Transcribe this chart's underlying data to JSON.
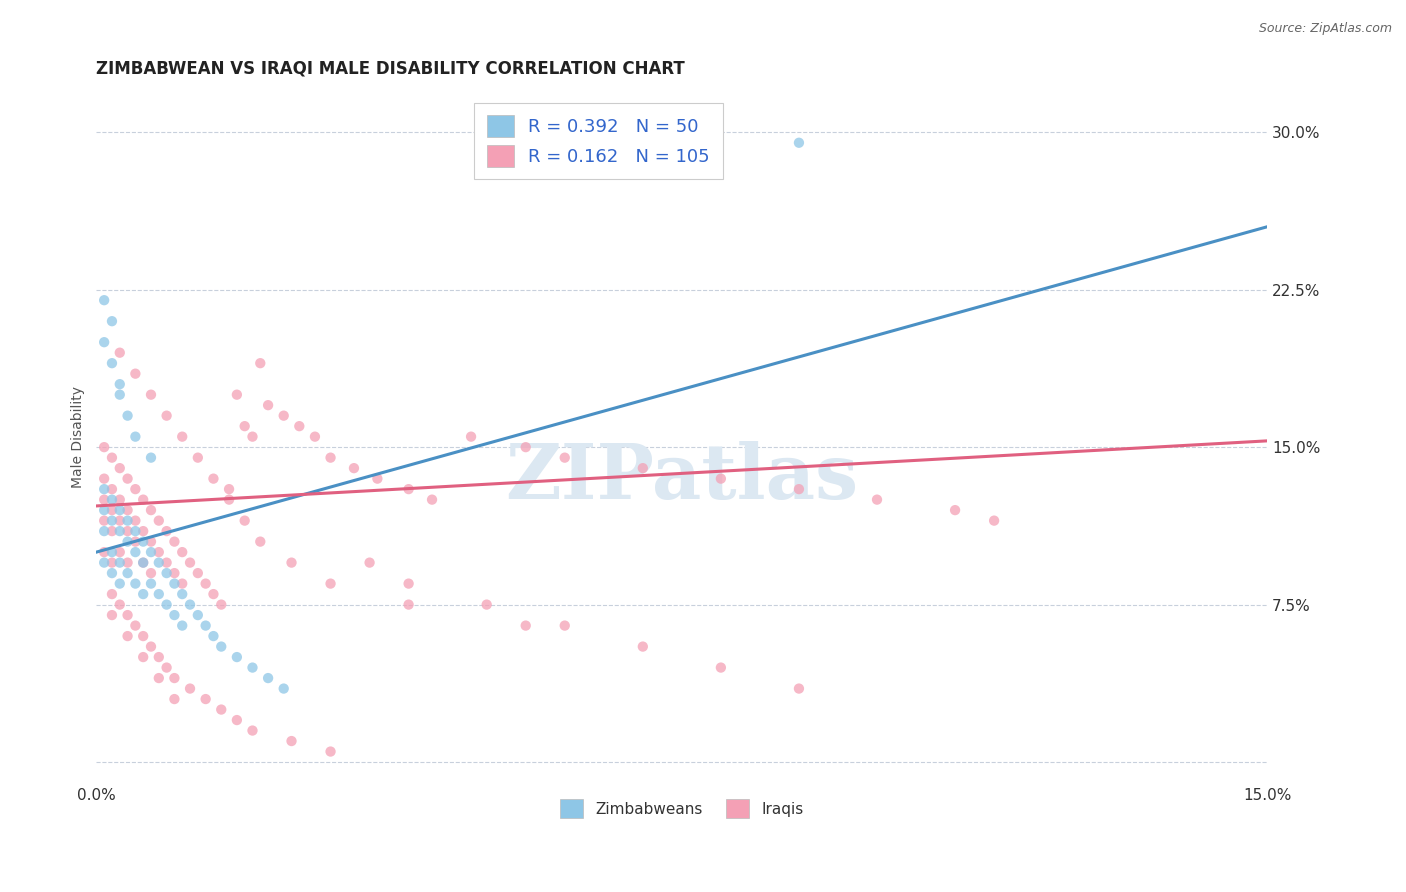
{
  "title": "ZIMBABWEAN VS IRAQI MALE DISABILITY CORRELATION CHART",
  "source": "Source: ZipAtlas.com",
  "ylabel_label": "Male Disability",
  "right_yticks": [
    0.0,
    0.075,
    0.15,
    0.225,
    0.3
  ],
  "right_ytick_labels": [
    "",
    "7.5%",
    "15.0%",
    "22.5%",
    "30.0%"
  ],
  "xlim": [
    0.0,
    0.15
  ],
  "ylim": [
    -0.01,
    0.32
  ],
  "R_zim": 0.392,
  "N_zim": 50,
  "R_iraq": 0.162,
  "N_iraq": 105,
  "color_zim": "#8ec6e6",
  "color_iraq": "#f4a0b5",
  "line_color_zim": "#4a90c4",
  "line_color_iraq": "#e06080",
  "legend_text_color": "#3366cc",
  "background_color": "#ffffff",
  "grid_color": "#c8d0dc",
  "watermark_text": "ZIPatlas",
  "watermark_color": "#dce8f2",
  "title_fontsize": 12,
  "axis_label_fontsize": 10,
  "legend_fontsize": 13,
  "zim_line_x0": 0.0,
  "zim_line_y0": 0.1,
  "zim_line_x1": 0.15,
  "zim_line_y1": 0.255,
  "iraq_line_x0": 0.0,
  "iraq_line_y0": 0.122,
  "iraq_line_x1": 0.15,
  "iraq_line_y1": 0.153,
  "zim_scatter_x": [
    0.001,
    0.001,
    0.001,
    0.001,
    0.002,
    0.002,
    0.002,
    0.002,
    0.003,
    0.003,
    0.003,
    0.003,
    0.004,
    0.004,
    0.004,
    0.005,
    0.005,
    0.005,
    0.006,
    0.006,
    0.006,
    0.007,
    0.007,
    0.008,
    0.008,
    0.009,
    0.009,
    0.01,
    0.01,
    0.011,
    0.011,
    0.012,
    0.013,
    0.014,
    0.015,
    0.016,
    0.018,
    0.02,
    0.022,
    0.024,
    0.001,
    0.001,
    0.002,
    0.002,
    0.003,
    0.003,
    0.004,
    0.005,
    0.007,
    0.09
  ],
  "zim_scatter_y": [
    0.13,
    0.12,
    0.11,
    0.095,
    0.125,
    0.115,
    0.1,
    0.09,
    0.12,
    0.11,
    0.095,
    0.085,
    0.115,
    0.105,
    0.09,
    0.11,
    0.1,
    0.085,
    0.105,
    0.095,
    0.08,
    0.1,
    0.085,
    0.095,
    0.08,
    0.09,
    0.075,
    0.085,
    0.07,
    0.08,
    0.065,
    0.075,
    0.07,
    0.065,
    0.06,
    0.055,
    0.05,
    0.045,
    0.04,
    0.035,
    0.2,
    0.22,
    0.19,
    0.21,
    0.18,
    0.175,
    0.165,
    0.155,
    0.145,
    0.295
  ],
  "iraq_scatter_x": [
    0.001,
    0.001,
    0.001,
    0.001,
    0.001,
    0.002,
    0.002,
    0.002,
    0.002,
    0.002,
    0.003,
    0.003,
    0.003,
    0.003,
    0.004,
    0.004,
    0.004,
    0.004,
    0.005,
    0.005,
    0.005,
    0.006,
    0.006,
    0.006,
    0.007,
    0.007,
    0.007,
    0.008,
    0.008,
    0.009,
    0.009,
    0.01,
    0.01,
    0.011,
    0.011,
    0.012,
    0.013,
    0.014,
    0.015,
    0.016,
    0.017,
    0.018,
    0.019,
    0.02,
    0.021,
    0.022,
    0.024,
    0.026,
    0.028,
    0.03,
    0.033,
    0.036,
    0.04,
    0.043,
    0.048,
    0.055,
    0.06,
    0.07,
    0.08,
    0.09,
    0.1,
    0.11,
    0.115,
    0.002,
    0.003,
    0.004,
    0.005,
    0.006,
    0.007,
    0.008,
    0.009,
    0.01,
    0.012,
    0.014,
    0.016,
    0.018,
    0.02,
    0.025,
    0.03,
    0.035,
    0.04,
    0.05,
    0.06,
    0.07,
    0.08,
    0.09,
    0.003,
    0.005,
    0.007,
    0.009,
    0.011,
    0.013,
    0.015,
    0.017,
    0.019,
    0.021,
    0.025,
    0.03,
    0.04,
    0.055,
    0.002,
    0.004,
    0.006,
    0.008,
    0.01
  ],
  "iraq_scatter_y": [
    0.15,
    0.135,
    0.125,
    0.115,
    0.1,
    0.145,
    0.13,
    0.12,
    0.11,
    0.095,
    0.14,
    0.125,
    0.115,
    0.1,
    0.135,
    0.12,
    0.11,
    0.095,
    0.13,
    0.115,
    0.105,
    0.125,
    0.11,
    0.095,
    0.12,
    0.105,
    0.09,
    0.115,
    0.1,
    0.11,
    0.095,
    0.105,
    0.09,
    0.1,
    0.085,
    0.095,
    0.09,
    0.085,
    0.08,
    0.075,
    0.13,
    0.175,
    0.16,
    0.155,
    0.19,
    0.17,
    0.165,
    0.16,
    0.155,
    0.145,
    0.14,
    0.135,
    0.13,
    0.125,
    0.155,
    0.15,
    0.145,
    0.14,
    0.135,
    0.13,
    0.125,
    0.12,
    0.115,
    0.08,
    0.075,
    0.07,
    0.065,
    0.06,
    0.055,
    0.05,
    0.045,
    0.04,
    0.035,
    0.03,
    0.025,
    0.02,
    0.015,
    0.01,
    0.005,
    0.095,
    0.085,
    0.075,
    0.065,
    0.055,
    0.045,
    0.035,
    0.195,
    0.185,
    0.175,
    0.165,
    0.155,
    0.145,
    0.135,
    0.125,
    0.115,
    0.105,
    0.095,
    0.085,
    0.075,
    0.065,
    0.07,
    0.06,
    0.05,
    0.04,
    0.03
  ]
}
